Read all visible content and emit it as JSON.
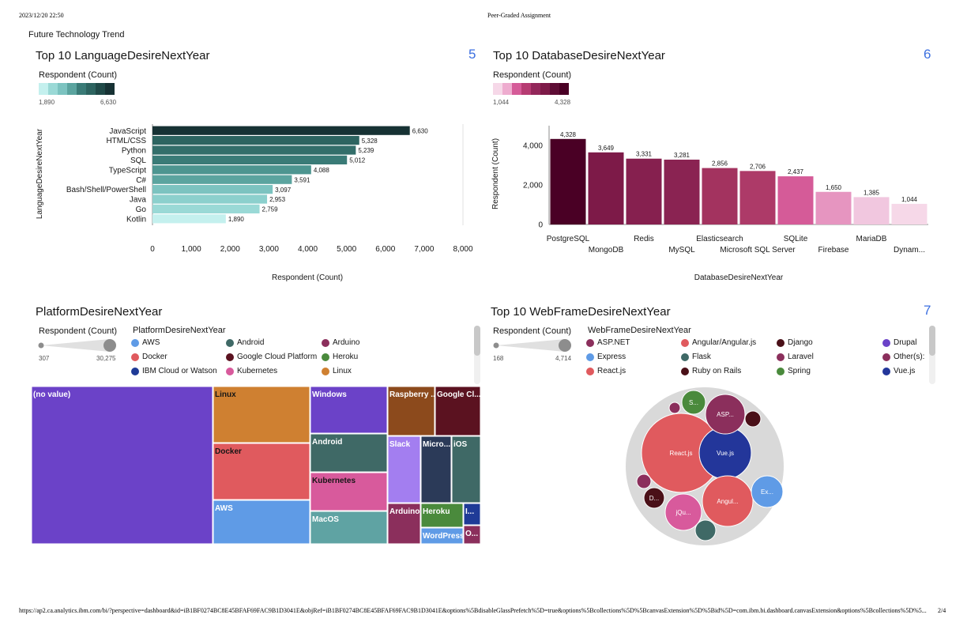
{
  "print": {
    "datetime": "2023/12/20 22:50",
    "doc_title": "Peer-Graded Assignment",
    "url": "https://ap2.ca.analytics.ibm.com/bi/?perspective=dashboard&id=iB1BF0274BC8E45BFAF69FAC9B1D3041E&objRef=iB1BF0274BC8E45BFAF69FAC9B1D3041E&options%5BdisableGlassPrefetch%5D=true&options%5Bcollections%5D%5BcanvasExtension%5D%5Bid%5D=com.ibm.bi.dashboard.canvasExtension&options%5Bcollections%5D%5...",
    "page": "2/4"
  },
  "dashboard": {
    "tab_title": "Future Technology Trend"
  },
  "colors": {
    "accent": "#3b6fe0",
    "teal_dark": "#173234",
    "magenta_dark": "#4a0025"
  },
  "chart_data": [
    {
      "id": "language",
      "type": "bar",
      "orientation": "horizontal",
      "title": "Top 10 LanguageDesireNextYear",
      "tile_number": "5",
      "legend_title": "Respondent (Count)",
      "legend_min": "1,890",
      "legend_max": "6,630",
      "categories": [
        "JavaScript",
        "HTML/CSS",
        "Python",
        "SQL",
        "TypeScript",
        "C#",
        "Bash/Shell/PowerShell",
        "Java",
        "Go",
        "Kotlin"
      ],
      "values": [
        6630,
        5328,
        5239,
        5012,
        4088,
        3591,
        3097,
        2953,
        2759,
        1890
      ],
      "value_labels": [
        "6,630",
        "5,328",
        "5,239",
        "5,012",
        "4,088",
        "3,591",
        "3,097",
        "2,953",
        "2,759",
        "1,890"
      ],
      "xlabel": "Respondent (Count)",
      "ylabel": "LanguageDesireNextYear",
      "xlim": [
        0,
        8000
      ],
      "ticks": [
        "0",
        "1,000",
        "2,000",
        "3,000",
        "4,000",
        "5,000",
        "6,000",
        "7,000",
        "8,000"
      ],
      "colors": [
        "#173234",
        "#2d6460",
        "#336e6a",
        "#3a7b77",
        "#4d9590",
        "#5ba49f",
        "#7cc3c0",
        "#8cd0cd",
        "#9ad9d6",
        "#c4f0ee"
      ],
      "legend_colors": [
        "#c4f0ee",
        "#9ad9d6",
        "#7cc3c0",
        "#5ba49f",
        "#3a7b77",
        "#2d6460",
        "#204a48",
        "#173234"
      ]
    },
    {
      "id": "database",
      "type": "bar",
      "orientation": "vertical",
      "title": "Top 10 DatabaseDesireNextYear",
      "tile_number": "6",
      "legend_title": "Respondent (Count)",
      "legend_min": "1,044",
      "legend_max": "4,328",
      "categories": [
        "PostgreSQL",
        "MongoDB",
        "Redis",
        "MySQL",
        "Elasticsearch",
        "Microsoft SQL Server",
        "SQLite",
        "Firebase",
        "MariaDB",
        "Dynam..."
      ],
      "values": [
        4328,
        3649,
        3331,
        3281,
        2856,
        2706,
        2437,
        1650,
        1385,
        1044
      ],
      "value_labels": [
        "4,328",
        "3,649",
        "3,331",
        "3,281",
        "2,856",
        "2,706",
        "2,437",
        "1,650",
        "1,385",
        "1,044"
      ],
      "xlabel": "DatabaseDesireNextYear",
      "ylabel": "Respondent (Count)",
      "ylim": [
        0,
        5000
      ],
      "yticks": [
        0,
        2000,
        4000
      ],
      "ytick_labels": [
        "0",
        "2,000",
        "4,000"
      ],
      "colors": [
        "#4a0025",
        "#7d1a48",
        "#86204f",
        "#8a2352",
        "#a3335f",
        "#ad3a68",
        "#d55b98",
        "#e695c0",
        "#f1c7df",
        "#f6d8e8"
      ],
      "legend_colors": [
        "#f6d8e8",
        "#eeaccf",
        "#d55b98",
        "#b63c72",
        "#93275a",
        "#7d1a48",
        "#5e0d35",
        "#4a0025"
      ]
    },
    {
      "id": "platform",
      "type": "treemap",
      "title": "PlatformDesireNextYear",
      "size_legend_title": "Respondent (Count)",
      "size_min": "307",
      "size_max": "30,275",
      "color_legend_title": "PlatformDesireNextYear",
      "legend_items": [
        {
          "label": "AWS",
          "color": "#5f9be6"
        },
        {
          "label": "Android",
          "color": "#3f6966"
        },
        {
          "label": "Arduino",
          "color": "#8b2f5c"
        },
        {
          "label": "Docker",
          "color": "#e05a5e"
        },
        {
          "label": "Google Cloud Platform",
          "color": "#5b1220"
        },
        {
          "label": "Heroku",
          "color": "#4a8a3c"
        },
        {
          "label": "IBM Cloud or Watson",
          "color": "#1f3b97"
        },
        {
          "label": "Kubernetes",
          "color": "#d85a9c"
        },
        {
          "label": "Linux",
          "color": "#cf8031"
        }
      ],
      "cells": [
        {
          "label": "(no value)",
          "color": "#6b42c8"
        },
        {
          "label": "Linux",
          "color": "#cf8031"
        },
        {
          "label": "Docker",
          "color": "#e05a5e"
        },
        {
          "label": "AWS",
          "color": "#5f9be6"
        },
        {
          "label": "Windows",
          "color": "#6b42c8"
        },
        {
          "label": "Android",
          "color": "#3f6966"
        },
        {
          "label": "Kubernetes",
          "color": "#d85a9c"
        },
        {
          "label": "MacOS",
          "color": "#5fa3a3"
        },
        {
          "label": "Raspberry ...",
          "color": "#8c4a1c"
        },
        {
          "label": "Google Cl...",
          "color": "#5b1220"
        },
        {
          "label": "Slack",
          "color": "#a37ef0"
        },
        {
          "label": "Micro...",
          "color": "#2b3a58"
        },
        {
          "label": "iOS",
          "color": "#3f6966"
        },
        {
          "label": "Arduino",
          "color": "#8b2f5c"
        },
        {
          "label": "Heroku",
          "color": "#4a8a3c"
        },
        {
          "label": "WordPress",
          "color": "#5f9be6"
        },
        {
          "label": "I...",
          "color": "#1f3b97"
        },
        {
          "label": "O...",
          "color": "#8b2f5c"
        }
      ]
    },
    {
      "id": "webframe",
      "type": "bubble",
      "title": "Top 10 WebFrameDesireNextYear",
      "tile_number": "7",
      "size_legend_title": "Respondent (Count)",
      "size_min": "168",
      "size_max": "4,714",
      "color_legend_title": "WebFrameDesireNextYear",
      "legend_items": [
        {
          "label": "ASP.NET",
          "color": "#8b2f5c"
        },
        {
          "label": "Angular/Angular.js",
          "color": "#e05a5e"
        },
        {
          "label": "Django",
          "color": "#4a1018"
        },
        {
          "label": "Drupal",
          "color": "#6b42c8"
        },
        {
          "label": "Express",
          "color": "#5f9be6"
        },
        {
          "label": "Flask",
          "color": "#3f6966"
        },
        {
          "label": "Laravel",
          "color": "#8b2f5c"
        },
        {
          "label": "Other(s):",
          "color": "#8b2f5c"
        },
        {
          "label": "React.js",
          "color": "#e05a5e"
        },
        {
          "label": "Ruby on Rails",
          "color": "#4a1018"
        },
        {
          "label": "Spring",
          "color": "#4a8a3c"
        },
        {
          "label": "Vue.js",
          "color": "#23369a"
        }
      ],
      "bubbles": [
        {
          "label": "React.js",
          "color": "#e05a5e"
        },
        {
          "label": "Vue.js",
          "color": "#23369a"
        },
        {
          "label": "Angul...",
          "color": "#e05a5e"
        },
        {
          "label": "ASP...",
          "color": "#8b2f5c"
        },
        {
          "label": "jQu...",
          "color": "#d85a9c"
        },
        {
          "label": "Ex...",
          "color": "#5f9be6"
        },
        {
          "label": "D...",
          "color": "#4a1018"
        },
        {
          "label": "S...",
          "color": "#4a8a3c"
        },
        {
          "label": "",
          "color": "#3f6966"
        },
        {
          "label": "",
          "color": "#4a1018"
        },
        {
          "label": "",
          "color": "#8b2f5c"
        },
        {
          "label": "",
          "color": "#8b2f5c"
        }
      ]
    }
  ]
}
